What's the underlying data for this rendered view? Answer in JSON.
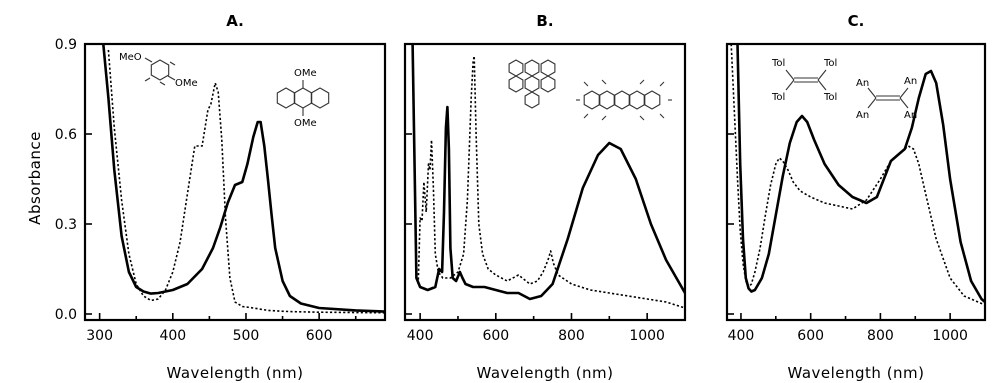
{
  "figure": {
    "ylabel": "Absorbance"
  },
  "chart_data": [
    {
      "type": "line",
      "panel": "A.",
      "title": "A.",
      "xlabel": "Wavelength (nm)",
      "ylabel": "Absorbance",
      "xlim": [
        280,
        690
      ],
      "ylim": [
        -0.02,
        0.9
      ],
      "xticks": [
        300,
        400,
        500,
        600
      ],
      "xtick_labels": [
        "300",
        "400",
        "500",
        "600"
      ],
      "yticks": [
        0.0,
        0.3,
        0.6,
        0.9
      ],
      "ytick_labels": [
        "0.0",
        "0.3",
        "0.6",
        "0.9"
      ],
      "grid": false,
      "structures": [
        {
          "labels": [
            "MeO",
            "OMe"
          ]
        },
        {
          "labels": [
            "OMe",
            "OMe"
          ]
        }
      ],
      "series": [
        {
          "style": "solid",
          "x": [
            305,
            312,
            320,
            330,
            340,
            350,
            360,
            370,
            380,
            400,
            420,
            440,
            455,
            465,
            475,
            485,
            495,
            502,
            510,
            516,
            520,
            525,
            530,
            535,
            540,
            550,
            560,
            575,
            600,
            650,
            690
          ],
          "y": [
            0.9,
            0.72,
            0.48,
            0.26,
            0.14,
            0.09,
            0.075,
            0.068,
            0.07,
            0.08,
            0.1,
            0.15,
            0.22,
            0.29,
            0.37,
            0.43,
            0.44,
            0.5,
            0.59,
            0.64,
            0.64,
            0.56,
            0.45,
            0.33,
            0.22,
            0.11,
            0.06,
            0.035,
            0.02,
            0.012,
            0.008
          ]
        },
        {
          "style": "dotted",
          "x": [
            312,
            320,
            330,
            340,
            350,
            360,
            370,
            380,
            390,
            400,
            410,
            420,
            430,
            440,
            448,
            452,
            458,
            462,
            467,
            472,
            478,
            485,
            495,
            510,
            530,
            560,
            600,
            690
          ],
          "y": [
            0.88,
            0.62,
            0.38,
            0.2,
            0.1,
            0.06,
            0.045,
            0.05,
            0.08,
            0.14,
            0.24,
            0.4,
            0.56,
            0.56,
            0.68,
            0.7,
            0.77,
            0.74,
            0.58,
            0.32,
            0.12,
            0.04,
            0.025,
            0.02,
            0.012,
            0.008,
            0.006,
            0.004
          ]
        }
      ]
    },
    {
      "type": "line",
      "panel": "B.",
      "title": "B.",
      "xlabel": "Wavelength (nm)",
      "xlim": [
        360,
        1100
      ],
      "ylim": [
        -0.02,
        0.9
      ],
      "xticks": [
        400,
        600,
        800,
        1000
      ],
      "xtick_labels": [
        "400",
        "600",
        "800",
        "1000"
      ],
      "yticks": [
        0.0,
        0.3,
        0.6,
        0.9
      ],
      "ytick_labels": [],
      "grid": false,
      "series": [
        {
          "style": "solid",
          "x": [
            380,
            390,
            400,
            420,
            440,
            450,
            458,
            463,
            468,
            472,
            476,
            480,
            486,
            495,
            505,
            512,
            520,
            540,
            570,
            600,
            630,
            660,
            690,
            720,
            750,
            790,
            830,
            870,
            900,
            930,
            970,
            1010,
            1050,
            1100
          ],
          "y": [
            0.9,
            0.12,
            0.09,
            0.08,
            0.09,
            0.15,
            0.14,
            0.34,
            0.62,
            0.69,
            0.55,
            0.22,
            0.12,
            0.11,
            0.14,
            0.12,
            0.1,
            0.09,
            0.09,
            0.08,
            0.07,
            0.07,
            0.05,
            0.06,
            0.1,
            0.25,
            0.42,
            0.53,
            0.57,
            0.55,
            0.45,
            0.3,
            0.18,
            0.07
          ]
        },
        {
          "style": "dotted",
          "x": [
            395,
            400,
            405,
            410,
            416,
            422,
            426,
            430,
            435,
            440,
            448,
            460,
            480,
            500,
            515,
            525,
            535,
            540,
            543,
            548,
            555,
            565,
            580,
            600,
            630,
            660,
            690,
            710,
            725,
            738,
            745,
            752,
            765,
            800,
            850,
            900,
            950,
            1000,
            1050,
            1100
          ],
          "y": [
            0.1,
            0.32,
            0.31,
            0.44,
            0.34,
            0.5,
            0.48,
            0.58,
            0.42,
            0.2,
            0.14,
            0.12,
            0.12,
            0.14,
            0.2,
            0.38,
            0.72,
            0.84,
            0.86,
            0.6,
            0.3,
            0.2,
            0.15,
            0.13,
            0.11,
            0.13,
            0.1,
            0.11,
            0.14,
            0.18,
            0.21,
            0.17,
            0.13,
            0.1,
            0.08,
            0.07,
            0.06,
            0.05,
            0.04,
            0.02
          ]
        }
      ]
    },
    {
      "type": "line",
      "panel": "C.",
      "title": "C.",
      "xlabel": "Wavelength (nm)",
      "xlim": [
        360,
        1100
      ],
      "ylim": [
        -0.02,
        0.9
      ],
      "xticks": [
        400,
        600,
        800,
        1000
      ],
      "xtick_labels": [
        "400",
        "600",
        "800",
        "1000"
      ],
      "yticks": [
        0.0,
        0.3,
        0.6,
        0.9
      ],
      "ytick_labels": [],
      "grid": false,
      "structures": [
        {
          "labels": [
            "Tol",
            "Tol",
            "Tol",
            "Tol"
          ]
        },
        {
          "labels": [
            "An",
            "An",
            "An",
            "An"
          ]
        }
      ],
      "series": [
        {
          "style": "solid",
          "x": [
            390,
            398,
            406,
            414,
            422,
            430,
            440,
            460,
            480,
            500,
            520,
            540,
            560,
            575,
            590,
            610,
            640,
            680,
            720,
            760,
            790,
            810,
            830,
            850,
            870,
            890,
            910,
            930,
            945,
            960,
            980,
            1000,
            1030,
            1060,
            1090,
            1100
          ],
          "y": [
            0.9,
            0.5,
            0.25,
            0.12,
            0.085,
            0.075,
            0.08,
            0.12,
            0.2,
            0.33,
            0.46,
            0.57,
            0.64,
            0.66,
            0.64,
            0.58,
            0.5,
            0.43,
            0.39,
            0.37,
            0.39,
            0.45,
            0.51,
            0.53,
            0.55,
            0.62,
            0.72,
            0.8,
            0.81,
            0.77,
            0.63,
            0.45,
            0.24,
            0.11,
            0.05,
            0.04
          ]
        },
        {
          "style": "dotted",
          "x": [
            372,
            378,
            384,
            390,
            398,
            406,
            414,
            422,
            430,
            440,
            455,
            470,
            485,
            500,
            510,
            520,
            535,
            550,
            570,
            600,
            640,
            680,
            720,
            760,
            800,
            830,
            860,
            880,
            895,
            910,
            930,
            960,
            1000,
            1040,
            1100
          ],
          "y": [
            0.9,
            0.75,
            0.6,
            0.45,
            0.28,
            0.17,
            0.11,
            0.09,
            0.1,
            0.14,
            0.22,
            0.33,
            0.43,
            0.5,
            0.52,
            0.51,
            0.48,
            0.44,
            0.41,
            0.39,
            0.37,
            0.36,
            0.35,
            0.38,
            0.45,
            0.51,
            0.54,
            0.56,
            0.55,
            0.5,
            0.4,
            0.25,
            0.12,
            0.06,
            0.03
          ]
        }
      ]
    }
  ]
}
